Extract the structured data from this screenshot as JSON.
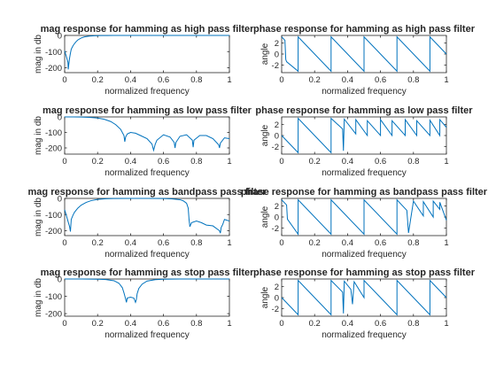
{
  "figure": {
    "background": "#ffffff",
    "line_color": "#0072bd",
    "axes_color": "#262626"
  },
  "chart_data": [
    {
      "type": "line",
      "title": "mag response for hamming as high pass filter",
      "xlabel": "normalized frequency",
      "ylabel": "mag in db",
      "xlim": [
        0,
        1
      ],
      "ylim": [
        -230,
        0
      ],
      "xticks": [
        0,
        0.2,
        0.4,
        0.6,
        0.8,
        1
      ],
      "xticklabels": [
        "0",
        "0.2",
        "0.4",
        "0.6",
        "0.8",
        "1"
      ],
      "yticks": [
        -200,
        -100,
        0
      ],
      "yticklabels": [
        "-200",
        "-100",
        "0"
      ],
      "series": [
        {
          "x": [
            0,
            0.02,
            0.022,
            0.025,
            0.03,
            0.035,
            0.04,
            0.05,
            0.06,
            0.07,
            0.08,
            0.1,
            0.12,
            0.15,
            0.18,
            0.22,
            0.26,
            0.3,
            0.35,
            0.4,
            0.5,
            0.6,
            0.8,
            1.0
          ],
          "y": [
            -95,
            -165,
            -210,
            -180,
            -140,
            -110,
            -85,
            -65,
            -50,
            -38,
            -28,
            -16,
            -9,
            -4,
            -2,
            -1,
            -0.5,
            -0.2,
            -0.1,
            0,
            0,
            0,
            0,
            0
          ]
        }
      ]
    },
    {
      "type": "line",
      "title": "phase response for hamming as high pass filter",
      "xlabel": "normalized frequency",
      "ylabel": "angle",
      "xlim": [
        0,
        1
      ],
      "ylim": [
        -3.4,
        3.4
      ],
      "xticks": [
        0,
        0.2,
        0.4,
        0.6,
        0.8,
        1
      ],
      "xticklabels": [
        "0",
        "0.2",
        "0.4",
        "0.6",
        "0.8",
        "1"
      ],
      "yticks": [
        -2,
        0,
        2
      ],
      "yticklabels": [
        "-2",
        "0",
        "2"
      ],
      "series": [
        {
          "x": [
            0,
            0.02,
            0.025,
            0.03,
            0.1,
            0.1,
            0.3,
            0.3,
            0.5,
            0.5,
            0.7,
            0.7,
            0.9,
            0.9,
            1.0
          ],
          "y": [
            3.14,
            2.5,
            -1.0,
            -1.4,
            -3.14,
            3.14,
            -3.14,
            3.14,
            -3.14,
            3.14,
            -3.14,
            3.14,
            -3.14,
            3.14,
            0.0
          ]
        }
      ]
    },
    {
      "type": "line",
      "title": "mag response for hamming as low pass filter",
      "xlabel": "normalized frequency",
      "ylabel": "mag in db",
      "xlim": [
        0,
        1
      ],
      "ylim": [
        -240,
        0
      ],
      "xticks": [
        0,
        0.2,
        0.4,
        0.6,
        0.8,
        1
      ],
      "xticklabels": [
        "0",
        "0.2",
        "0.4",
        "0.6",
        "0.8",
        "1"
      ],
      "yticks": [
        -200,
        -100,
        0
      ],
      "yticklabels": [
        "-200",
        "-100",
        "0"
      ],
      "series": [
        {
          "x": [
            0,
            0.05,
            0.1,
            0.15,
            0.2,
            0.24,
            0.28,
            0.31,
            0.34,
            0.36,
            0.365,
            0.37,
            0.38,
            0.4,
            0.43,
            0.46,
            0.5,
            0.53,
            0.54,
            0.55,
            0.56,
            0.6,
            0.64,
            0.665,
            0.67,
            0.675,
            0.7,
            0.74,
            0.775,
            0.78,
            0.785,
            0.82,
            0.86,
            0.9,
            0.935,
            0.94,
            0.945,
            0.97,
            1.0
          ],
          "y": [
            0,
            -0.2,
            -1,
            -3,
            -7,
            -15,
            -30,
            -50,
            -80,
            -120,
            -160,
            -130,
            -110,
            -100,
            -105,
            -120,
            -140,
            -175,
            -215,
            -175,
            -150,
            -115,
            -130,
            -165,
            -200,
            -165,
            -125,
            -115,
            -150,
            -195,
            -150,
            -120,
            -120,
            -140,
            -180,
            -200,
            -170,
            -135,
            -140
          ]
        }
      ]
    },
    {
      "type": "line",
      "title": "phase response for hamming as low pass filter",
      "xlabel": "normalized frequency",
      "ylabel": "angle",
      "xlim": [
        0,
        1
      ],
      "ylim": [
        -3.4,
        3.4
      ],
      "xticks": [
        0,
        0.2,
        0.4,
        0.6,
        0.8,
        1
      ],
      "xticklabels": [
        "0",
        "0.2",
        "0.4",
        "0.6",
        "0.8",
        "1"
      ],
      "yticks": [
        -2,
        0,
        2
      ],
      "yticklabels": [
        "-2",
        "0",
        "2"
      ],
      "series": [
        {
          "x": [
            0,
            0.1,
            0.1,
            0.3,
            0.3,
            0.37,
            0.375,
            0.38,
            0.45,
            0.45,
            0.52,
            0.52,
            0.6,
            0.6,
            0.67,
            0.67,
            0.75,
            0.75,
            0.82,
            0.82,
            0.9,
            0.9,
            0.96,
            0.96,
            1.0
          ],
          "y": [
            0,
            -3.14,
            3.14,
            -3.14,
            3.14,
            1.2,
            -2.8,
            3.0,
            0.3,
            2.9,
            0.0,
            2.7,
            0.0,
            2.9,
            0.0,
            2.7,
            0.0,
            2.9,
            0.0,
            2.7,
            0.0,
            2.8,
            0.0,
            2.9,
            1.5
          ]
        }
      ]
    },
    {
      "type": "line",
      "title": "mag response for hamming as bandpass pass filter",
      "xlabel": "normalized frequency",
      "ylabel": "mag in db",
      "xlim": [
        0,
        1
      ],
      "ylim": [
        -230,
        0
      ],
      "xticks": [
        0,
        0.2,
        0.4,
        0.6,
        0.8,
        1
      ],
      "xticklabels": [
        "0",
        "0.2",
        "0.4",
        "0.6",
        "0.8",
        "1"
      ],
      "yticks": [
        -200,
        -100,
        0
      ],
      "yticklabels": [
        "-200",
        "-100",
        "0"
      ],
      "series": [
        {
          "x": [
            0,
            0.02,
            0.03,
            0.035,
            0.04,
            0.05,
            0.06,
            0.08,
            0.1,
            0.13,
            0.16,
            0.2,
            0.25,
            0.3,
            0.4,
            0.5,
            0.6,
            0.65,
            0.7,
            0.72,
            0.74,
            0.75,
            0.755,
            0.76,
            0.77,
            0.8,
            0.83,
            0.86,
            0.9,
            0.94,
            0.945,
            0.95,
            0.96,
            0.97,
            1.0
          ],
          "y": [
            -70,
            -140,
            -175,
            -205,
            -130,
            -105,
            -85,
            -60,
            -42,
            -25,
            -14,
            -6,
            -2,
            -0.5,
            0,
            0,
            -1,
            -3,
            -8,
            -15,
            -30,
            -60,
            -130,
            -175,
            -150,
            -140,
            -150,
            -165,
            -170,
            -200,
            -215,
            -180,
            -160,
            -130,
            -140
          ]
        }
      ]
    },
    {
      "type": "line",
      "title": "phase response for hamming as bandpass pass filter",
      "xlabel": "normalized frequency",
      "ylabel": "angle",
      "xlim": [
        0,
        1
      ],
      "ylim": [
        -3.4,
        3.4
      ],
      "xticks": [
        0,
        0.2,
        0.4,
        0.6,
        0.8,
        1
      ],
      "xticklabels": [
        "0",
        "0.2",
        "0.4",
        "0.6",
        "0.8",
        "1"
      ],
      "yticks": [
        -2,
        0,
        2
      ],
      "yticklabels": [
        "-2",
        "0",
        "2"
      ],
      "series": [
        {
          "x": [
            0,
            0.03,
            0.035,
            0.1,
            0.1,
            0.3,
            0.3,
            0.5,
            0.5,
            0.7,
            0.7,
            0.76,
            0.77,
            0.8,
            0.86,
            0.86,
            0.92,
            0.92,
            0.96,
            0.96,
            1.0
          ],
          "y": [
            3.14,
            2.2,
            -0.4,
            -3.14,
            3.14,
            -3.14,
            3.14,
            -3.14,
            3.14,
            -3.14,
            3.14,
            1.2,
            -2.9,
            2.9,
            0.2,
            2.8,
            0.0,
            2.9,
            1.4,
            2.7,
            -0.6
          ]
        }
      ]
    },
    {
      "type": "line",
      "title": "mag response for hamming as stop pass filter",
      "xlabel": "normalized frequency",
      "ylabel": "mag in db",
      "xlim": [
        0,
        1
      ],
      "ylim": [
        -215,
        0
      ],
      "xticks": [
        0,
        0.2,
        0.4,
        0.6,
        0.8,
        1
      ],
      "xticklabels": [
        "0",
        "0.2",
        "0.4",
        "0.6",
        "0.8",
        "1"
      ],
      "yticks": [
        -200,
        -100,
        0
      ],
      "yticklabels": [
        "-200",
        "-100",
        "0"
      ],
      "series": [
        {
          "x": [
            0,
            0.1,
            0.2,
            0.25,
            0.3,
            0.33,
            0.35,
            0.36,
            0.37,
            0.375,
            0.38,
            0.4,
            0.42,
            0.43,
            0.435,
            0.44,
            0.45,
            0.47,
            0.5,
            0.55,
            0.6,
            0.7,
            0.8,
            1.0
          ],
          "y": [
            0,
            0,
            -1,
            -3,
            -10,
            -25,
            -50,
            -80,
            -115,
            -135,
            -110,
            -105,
            -110,
            -135,
            -120,
            -85,
            -55,
            -30,
            -12,
            -4,
            -1,
            0,
            0,
            0
          ]
        }
      ]
    },
    {
      "type": "line",
      "title": "phase response for hamming as stop pass filter",
      "xlabel": "normalized frequency",
      "ylabel": "angle",
      "xlim": [
        0,
        1
      ],
      "ylim": [
        -3.4,
        3.4
      ],
      "xticks": [
        0,
        0.2,
        0.4,
        0.6,
        0.8,
        1
      ],
      "xticklabels": [
        "0",
        "0.2",
        "0.4",
        "0.6",
        "0.8",
        "1"
      ],
      "yticks": [
        -2,
        0,
        2
      ],
      "yticklabels": [
        "-2",
        "0",
        "2"
      ],
      "series": [
        {
          "x": [
            0,
            0.1,
            0.1,
            0.3,
            0.3,
            0.37,
            0.375,
            0.38,
            0.42,
            0.43,
            0.44,
            0.5,
            0.5,
            0.7,
            0.7,
            0.9,
            0.9,
            1.0
          ],
          "y": [
            0,
            -3.14,
            3.14,
            -3.14,
            3.14,
            1.0,
            -2.9,
            3.0,
            1.5,
            -1.2,
            2.9,
            0.0,
            3.14,
            -3.14,
            3.14,
            -3.14,
            3.14,
            0.0
          ]
        }
      ]
    }
  ]
}
